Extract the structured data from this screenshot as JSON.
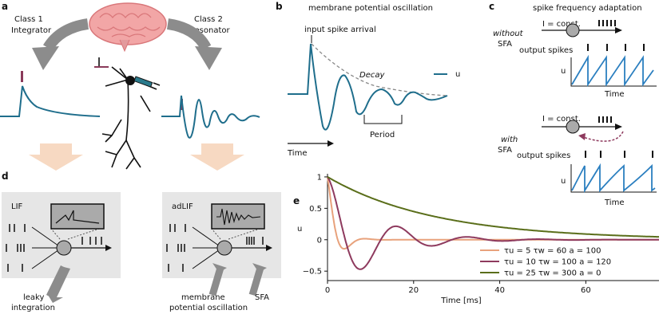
{
  "panels": {
    "a": {
      "label": "a",
      "class1_title": "Class 1",
      "class1_subtitle": "Integrator",
      "class2_title": "Class 2",
      "class2_subtitle": "Resonator"
    },
    "b": {
      "label": "b",
      "title": "membrane potential oscillation",
      "input_label": "input spike arrival",
      "decay_label": "Decay",
      "period_label": "Period",
      "time_label": "Time",
      "legend_u": "u"
    },
    "c": {
      "label": "c",
      "title": "spike frequency adaptation",
      "without_1": "without",
      "without_2": "SFA",
      "with_1": "with",
      "with_2": "SFA",
      "i_const": "I = const.",
      "output_spikes": "output spikes",
      "u_label": "u",
      "time_label": "Time"
    },
    "d": {
      "label": "d",
      "lif_title": "LIF",
      "adlif_title": "adLIF",
      "leaky_1": "leaky",
      "leaky_2": "integration",
      "mem_1": "membrane",
      "mem_2": "potential oscillation",
      "sfa": "SFA"
    },
    "e": {
      "label": "e"
    }
  },
  "colors": {
    "teal": "#1f6e8c",
    "orange": "#e8a27c",
    "purple": "#8e3a5e",
    "olive": "#5a6e1a",
    "spike_bar": "#8a3a5a",
    "gray_box": "#e6e6e6"
  },
  "chart_data": {
    "type": "line",
    "xlabel": "Time [ms]",
    "ylabel": "u",
    "xlim": [
      0,
      77
    ],
    "ylim": [
      -0.65,
      1.05
    ],
    "xticks": [
      0,
      20,
      40,
      60
    ],
    "yticks": [
      -0.5,
      0.0,
      0.5,
      1.0
    ],
    "ytick_labels": [
      "−0.5",
      "0",
      "0.5",
      "1"
    ],
    "legend_position": "lower-right",
    "series": [
      {
        "name": "τu = 5  τw = 60  a = 100",
        "color": "#e8a27c",
        "tau": 2.2,
        "period": 9.5,
        "shape": "damped"
      },
      {
        "name": "τu = 10  τw = 100  a = 120",
        "color": "#8e3a5e",
        "tau": 10.5,
        "period": 16.5,
        "shape": "damped"
      },
      {
        "name": "τu = 25  τw = 300  a = 0",
        "color": "#5a6e1a",
        "tau": 25,
        "shape": "exp"
      }
    ]
  }
}
